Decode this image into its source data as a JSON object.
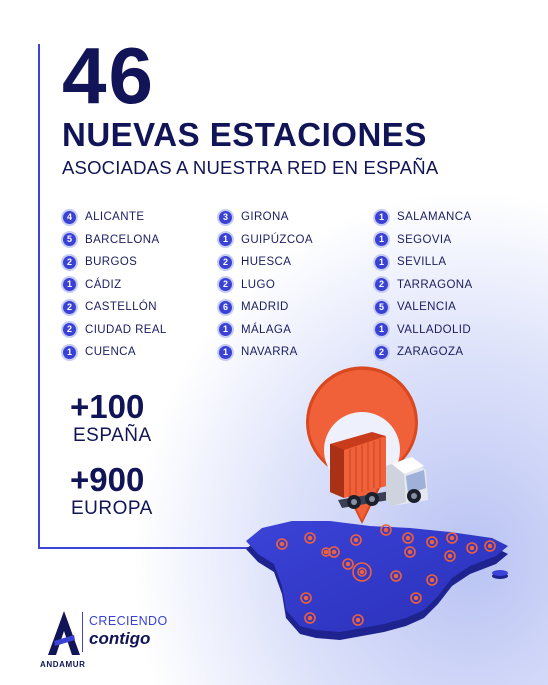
{
  "header": {
    "number": "46",
    "title": "NUEVAS ESTACIONES",
    "subtitle": "ASOCIADAS A NUESTRA RED EN ESPAÑA"
  },
  "cities": [
    [
      {
        "count": "4",
        "name": "ALICANTE"
      },
      {
        "count": "5",
        "name": "BARCELONA"
      },
      {
        "count": "2",
        "name": "BURGOS"
      },
      {
        "count": "1",
        "name": "CÁDIZ"
      },
      {
        "count": "2",
        "name": "CASTELLÓN"
      },
      {
        "count": "2",
        "name": "CIUDAD REAL"
      },
      {
        "count": "1",
        "name": "CUENCA"
      }
    ],
    [
      {
        "count": "3",
        "name": "GIRONA"
      },
      {
        "count": "1",
        "name": "GUIPÚZCOA"
      },
      {
        "count": "2",
        "name": "HUESCA"
      },
      {
        "count": "2",
        "name": "LUGO"
      },
      {
        "count": "6",
        "name": "MADRID"
      },
      {
        "count": "1",
        "name": "MÁLAGA"
      },
      {
        "count": "1",
        "name": "NAVARRA"
      }
    ],
    [
      {
        "count": "1",
        "name": "SALAMANCA"
      },
      {
        "count": "1",
        "name": "SEGOVIA"
      },
      {
        "count": "1",
        "name": "SEVILLA"
      },
      {
        "count": "2",
        "name": "TARRAGONA"
      },
      {
        "count": "5",
        "name": "VALENCIA"
      },
      {
        "count": "1",
        "name": "VALLADOLID"
      },
      {
        "count": "2",
        "name": "ZARAGOZA"
      }
    ]
  ],
  "stats": [
    {
      "value": "+100",
      "label": "ESPAÑA"
    },
    {
      "value": "+900",
      "label": "EUROPA"
    }
  ],
  "brand": {
    "name": "ANDAMUR",
    "slogan_line1": "CRECIENDO",
    "slogan_line2": "contigo"
  },
  "colors": {
    "navy": "#111456",
    "accent_blue": "#3a42d4",
    "map_blue": "#3036c4",
    "marker_orange": "#f0613a"
  },
  "icons": [
    "location-pin-icon",
    "truck-icon",
    "container-icon",
    "spain-map",
    "andamur-logo"
  ]
}
